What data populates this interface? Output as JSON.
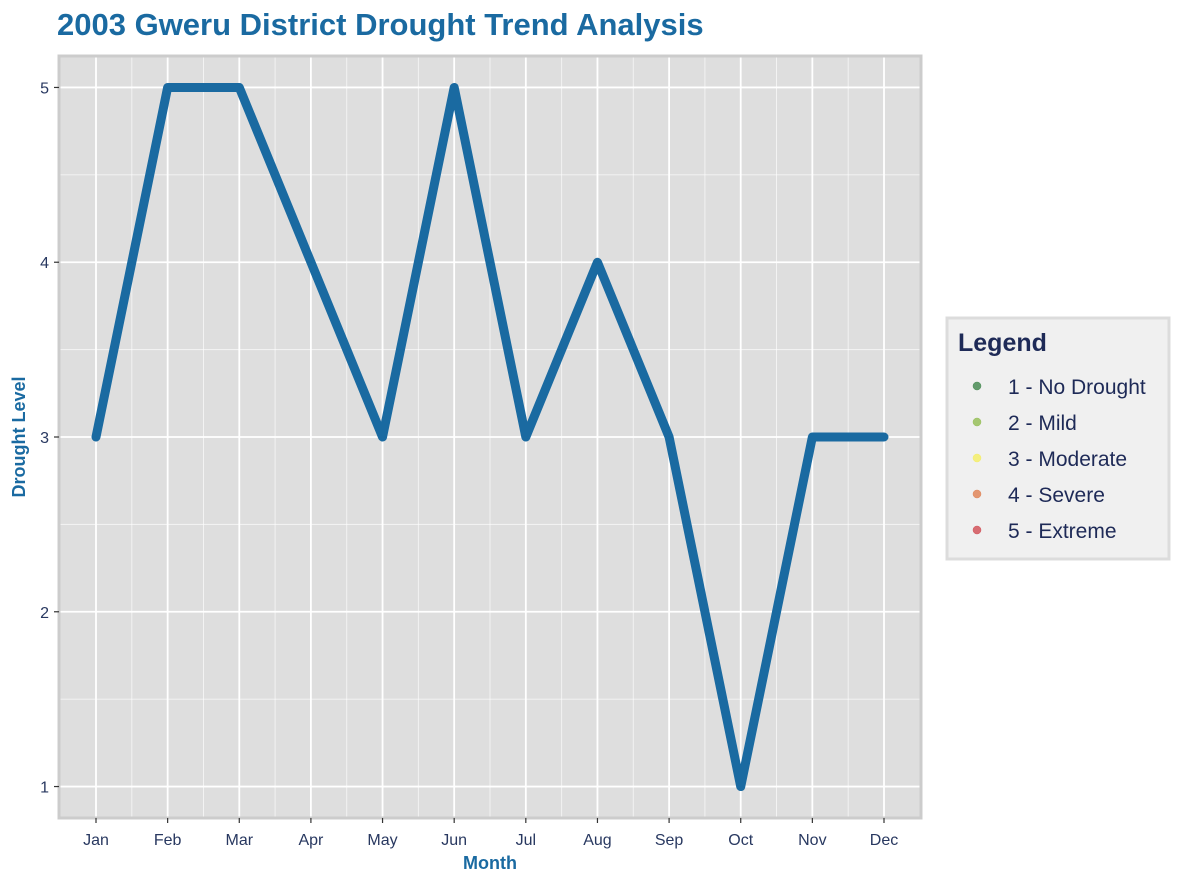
{
  "chart_data": {
    "type": "line",
    "title": "2003 Gweru District Drought Trend Analysis",
    "xlabel": "Month",
    "ylabel": "Drought Level",
    "categories": [
      "Jan",
      "Feb",
      "Mar",
      "Apr",
      "May",
      "Jun",
      "Jul",
      "Aug",
      "Sep",
      "Oct",
      "Nov",
      "Dec"
    ],
    "series": [
      {
        "values": [
          3,
          5,
          5,
          4,
          3,
          5,
          3,
          4,
          3,
          1,
          3,
          3
        ],
        "color": "#1a6aa1"
      }
    ],
    "ylim": [
      0.82,
      5.18
    ],
    "yticks": [
      1,
      2,
      3,
      4,
      5
    ],
    "grid": true,
    "legend": {
      "title": "Legend",
      "position": "right",
      "items": [
        {
          "label": "1 - No Drought",
          "color": "#4a8c55"
        },
        {
          "label": "2 - Mild",
          "color": "#98c05a"
        },
        {
          "label": "3 - Moderate",
          "color": "#f4ee6a"
        },
        {
          "label": "4 - Severe",
          "color": "#e0865a"
        },
        {
          "label": "5 - Extreme",
          "color": "#d2555c"
        }
      ]
    },
    "colors": {
      "title": "#1a6aa1",
      "axis_title": "#1a6aa1",
      "tick_text": "#283860",
      "legend_text": "#1e2a57",
      "panel_bg": "#dedede",
      "panel_border": "#cccccc",
      "grid": "#ffffff",
      "legend_bg": "#f0f0f0",
      "legend_border": "#dcdcdc"
    }
  }
}
